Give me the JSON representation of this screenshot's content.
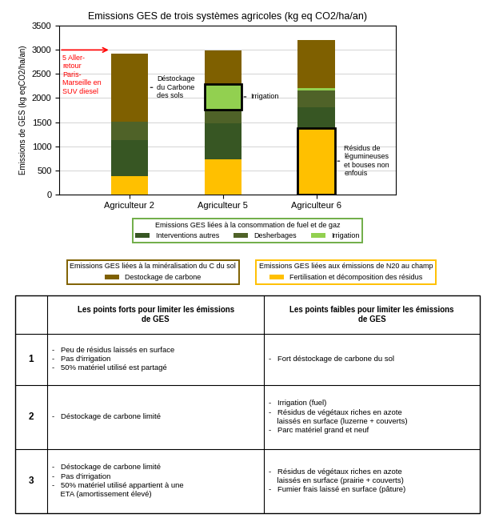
{
  "chart_data": {
    "type": "bar",
    "stacked": true,
    "title": "Emissions GES de trois systèmes agricoles (kg eq CO2/ha/an)",
    "ylabel": "Emissions de GES (kg eqCO2/ha/an)",
    "categories": [
      "Agriculteur 2",
      "Agriculteur 5",
      "Agriculteur 6"
    ],
    "series": [
      {
        "name": "Fertilisation et décomposition des résidus",
        "color": "#FFC000",
        "values": [
          380,
          730,
          1380
        ]
      },
      {
        "name": "Interventions autres",
        "color": "#375623",
        "values": [
          750,
          750,
          420
        ]
      },
      {
        "name": "Desherbages",
        "color": "#4F6228",
        "values": [
          380,
          280,
          350
        ]
      },
      {
        "name": "Irrigation",
        "color": "#92D050",
        "values": [
          0,
          530,
          60
        ]
      },
      {
        "name": "Destockage de carbone",
        "color": "#7F6000",
        "values": [
          1420,
          700,
          1000
        ]
      }
    ],
    "ylim": [
      0,
      3500
    ],
    "yticks": [
      0,
      500,
      1000,
      1500,
      2000,
      2500,
      3000,
      3500
    ],
    "grid": true,
    "legend": "below",
    "legend_groups": [
      {
        "title": "Emissions GES liées à la consommation de fuel et de gaz",
        "color": "#70AD47",
        "series": [
          "Interventions autres",
          "Desherbages",
          "Irrigation"
        ]
      },
      {
        "title": "Emissions GES liées à la minéralisation du C du sol",
        "color": "#7F6000",
        "series": [
          "Destockage de carbone"
        ]
      },
      {
        "title": "Emissions GES liées aux émissions de N20 au champ",
        "color": "#FFC000",
        "series": [
          "Fertilisation et décomposition des résidus"
        ]
      }
    ],
    "annotations": [
      {
        "text": "5 Aller-\nretour\nParis-\nMarseille en\nSUV diesel",
        "y": 3000,
        "color": "#FF0000"
      },
      {
        "text": "Déstockage\ndu Carbone\ndes sols",
        "category": "Agriculteur 2",
        "series": "Destockage de carbone",
        "boxed": false
      },
      {
        "text": "Irrigation",
        "category": "Agriculteur 5",
        "series": "Irrigation",
        "boxed": true
      },
      {
        "text": "Résidus de\nlégumineuses\net bouses non\nenfouis",
        "category": "Agriculteur 6",
        "series": "Fertilisation et décomposition des résidus",
        "boxed": true
      }
    ],
    "table": {
      "columns": [
        "Les points forts pour limiter les émissions\nde GES",
        "Les points faibles pour limiter les émissions\nde GES"
      ],
      "rows": [
        {
          "label": "1",
          "cells": [
            "-   Peu de résidus laissés en surface\n-   Pas d'irrigation\n-   50% matériel utilisé est partagé",
            "-   Fort déstockage de carbone du sol"
          ]
        },
        {
          "label": "2",
          "cells": [
            "-   Déstockage de carbone limité",
            "-   Irrigation (fuel)\n-   Résidus de végétaux riches en azote\n    laissés en surface (luzerne + couverts)\n-   Parc matériel grand et neuf"
          ]
        },
        {
          "label": "3",
          "cells": [
            "-   Déstockage de carbone limité\n-   Pas d'irrigation\n-   50% matériel utilisé appartient à une\n    ETA (amortissement élevé)",
            "-   Résidus de végétaux riches en azote\n    laissés en surface (prairie + couverts)\n-   Fumier frais laissé en surface (pâture)"
          ]
        }
      ]
    }
  }
}
